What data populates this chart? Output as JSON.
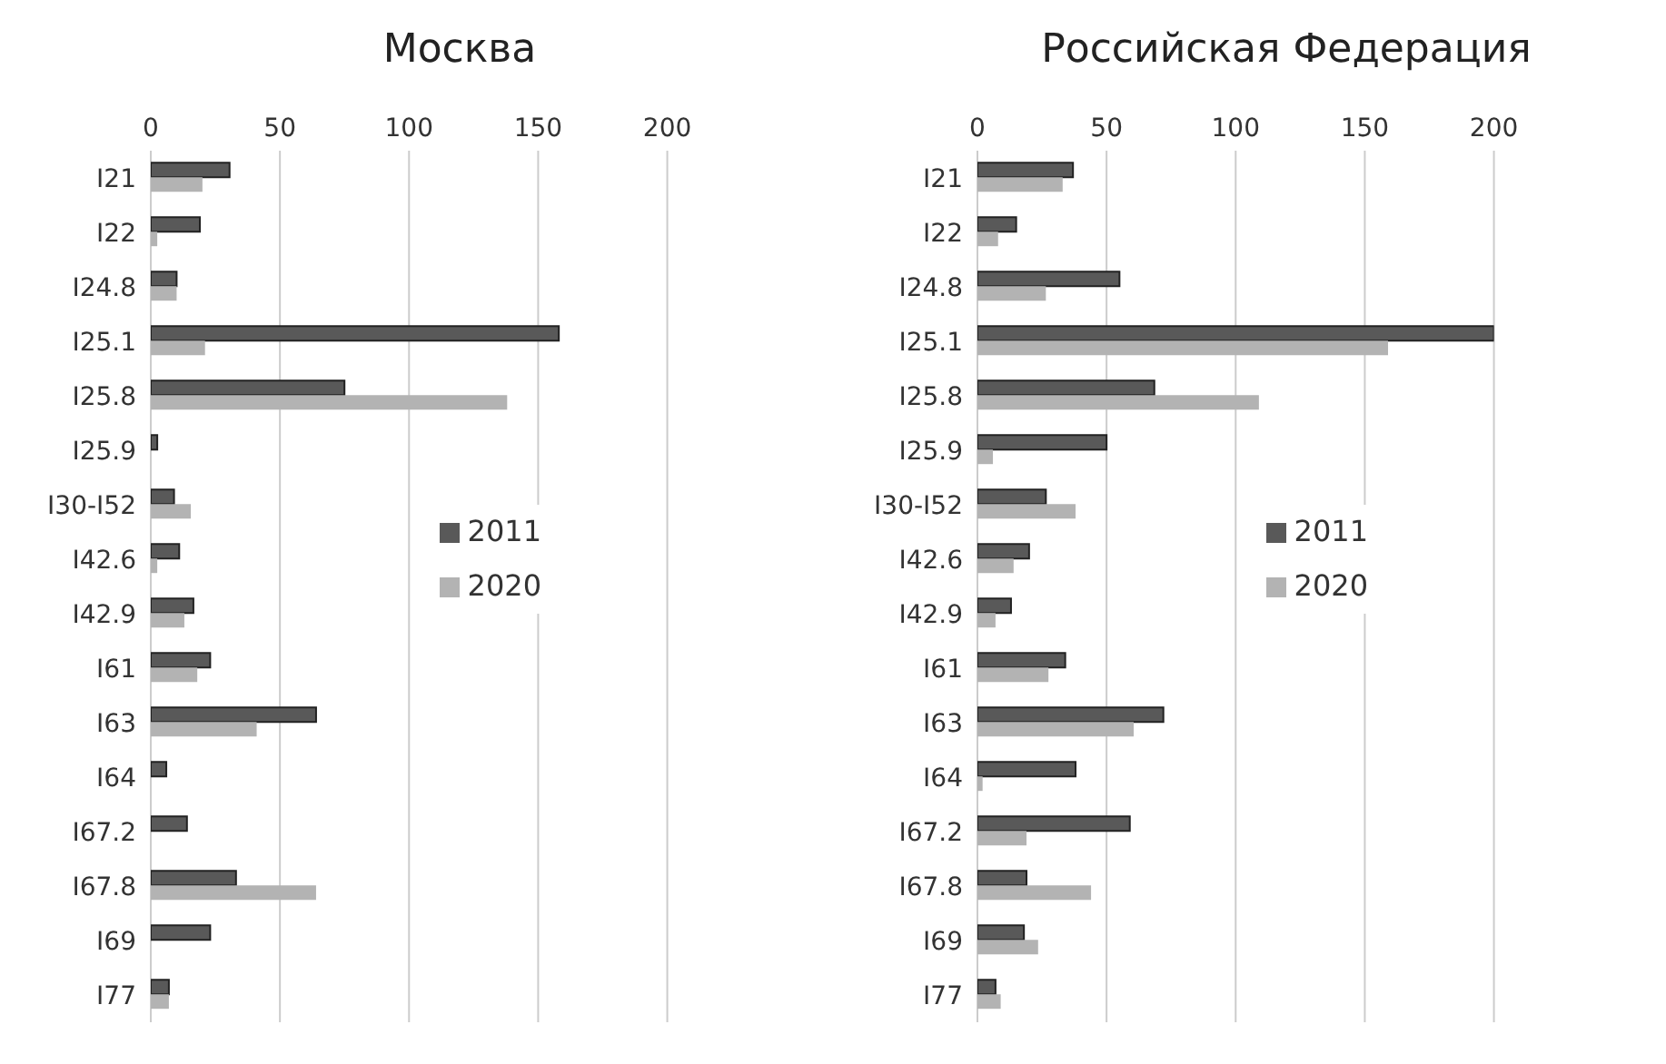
{
  "chart_data": [
    {
      "type": "bar",
      "orientation": "horizontal",
      "title": "Москва",
      "categories": [
        "I21",
        "I22",
        "I24.8",
        "I25.1",
        "I25.8",
        "I25.9",
        "I30-I52",
        "I42.6",
        "I42.9",
        "I61",
        "I63",
        "I64",
        "I67.2",
        "I67.8",
        "I69",
        "I77"
      ],
      "series": [
        {
          "name": "2011",
          "color": "#595959",
          "values": [
            30.5,
            19,
            10,
            158,
            75,
            2.5,
            9,
            11,
            16.5,
            23,
            64,
            6,
            14,
            33,
            23,
            7
          ]
        },
        {
          "name": "2020",
          "color": "#b3b3b3",
          "values": [
            20,
            2.5,
            10,
            21,
            138,
            null,
            15.5,
            2.5,
            13,
            18,
            41,
            null,
            null,
            64,
            null,
            7
          ]
        }
      ],
      "xlim": [
        0,
        200
      ],
      "xticks": [
        0,
        50,
        100,
        150,
        200
      ],
      "grid": "x",
      "legend": "right"
    },
    {
      "type": "bar",
      "orientation": "horizontal",
      "title": "Российская Федерация",
      "categories": [
        "I21",
        "I22",
        "I24.8",
        "I25.1",
        "I25.8",
        "I25.9",
        "I30-I52",
        "I42.6",
        "I42.9",
        "I61",
        "I63",
        "I64",
        "I67.2",
        "I67.8",
        "I69",
        "I77"
      ],
      "series": [
        {
          "name": "2011",
          "color": "#595959",
          "values": [
            37,
            15,
            55,
            200,
            68.5,
            50,
            26.5,
            20,
            13,
            34,
            72,
            38,
            59,
            19,
            18,
            7
          ]
        },
        {
          "name": "2020",
          "color": "#b3b3b3",
          "values": [
            33,
            8,
            26.5,
            159,
            109,
            6,
            38,
            14,
            7,
            27.5,
            60.5,
            2,
            19,
            44,
            23.5,
            9
          ]
        }
      ],
      "xlim": [
        0,
        200
      ],
      "xticks": [
        0,
        50,
        100,
        150,
        200
      ],
      "grid": "x",
      "legend": "right"
    }
  ]
}
